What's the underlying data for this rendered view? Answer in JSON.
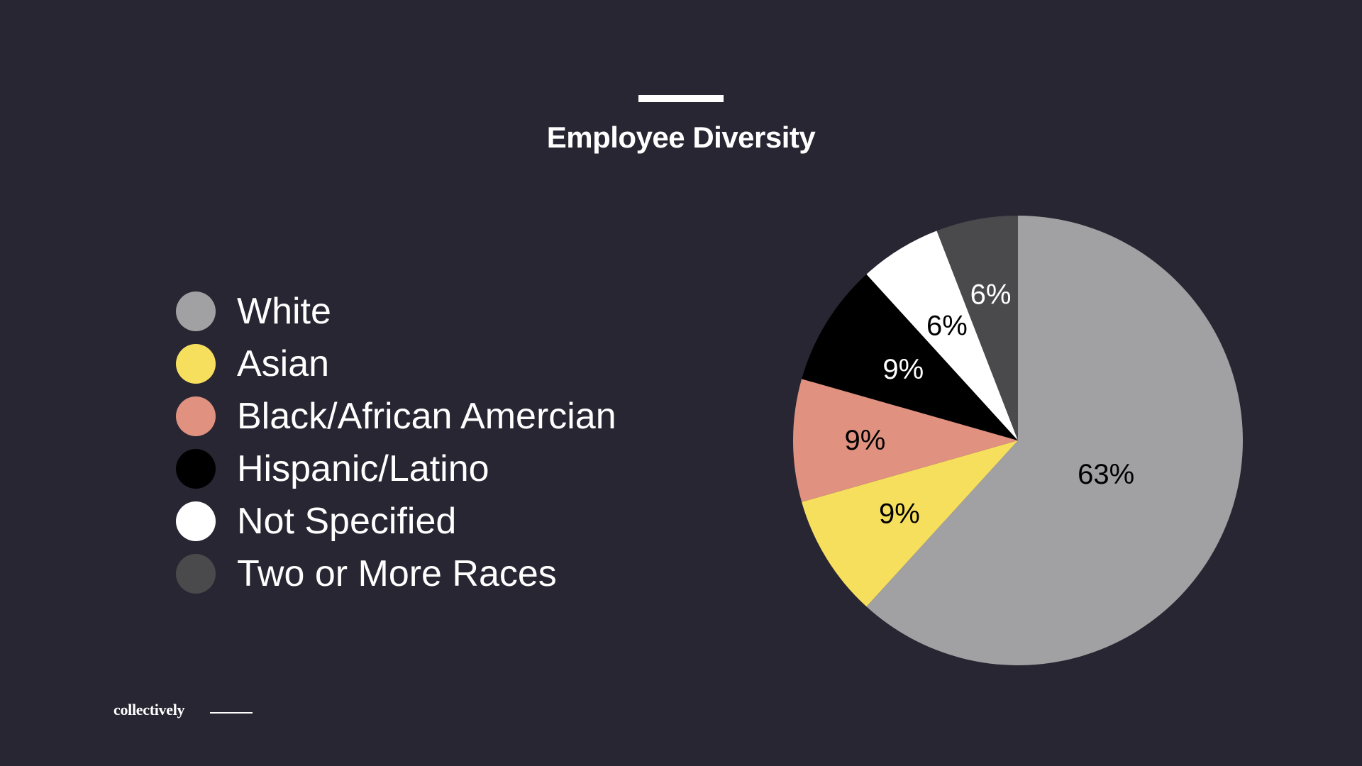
{
  "slide": {
    "title": "Employee Diversity",
    "brand": "collectively"
  },
  "chart_data": {
    "type": "pie",
    "title": "Employee Diversity",
    "legend_position": "left",
    "slices": [
      {
        "name": "White",
        "value": 63,
        "label": "63%",
        "color": "#a1a0a2",
        "label_color": "#000000"
      },
      {
        "name": "Asian",
        "value": 9,
        "label": "9%",
        "color": "#f7df5e",
        "label_color": "#000000"
      },
      {
        "name": "Black/African Amercian",
        "value": 9,
        "label": "9%",
        "color": "#e0917f",
        "label_color": "#000000"
      },
      {
        "name": "Hispanic/Latino",
        "value": 9,
        "label": "9%",
        "color": "#000000",
        "label_color": "#ffffff"
      },
      {
        "name": "Not Specified",
        "value": 6,
        "label": "6%",
        "color": "#ffffff",
        "label_color": "#000000"
      },
      {
        "name": "Two or More Races",
        "value": 6,
        "label": "6%",
        "color": "#4a4a4c",
        "label_color": "#ffffff"
      }
    ]
  }
}
